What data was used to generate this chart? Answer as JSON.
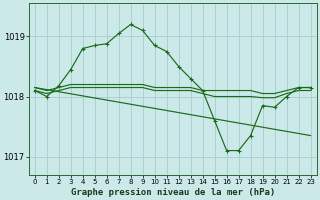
{
  "bg_color": "#cce9e9",
  "grid_color": "#aacccc",
  "line_color": "#1a6b1a",
  "title": "Graphe pression niveau de la mer (hPa)",
  "xlim": [
    -0.5,
    23.5
  ],
  "ylim": [
    1016.7,
    1019.55
  ],
  "yticks": [
    1017,
    1018,
    1019
  ],
  "xticks": [
    0,
    1,
    2,
    3,
    4,
    5,
    6,
    7,
    8,
    9,
    10,
    11,
    12,
    13,
    14,
    15,
    16,
    17,
    18,
    19,
    20,
    21,
    22,
    23
  ],
  "series": [
    {
      "x": [
        0,
        1,
        2,
        3,
        4,
        5,
        6,
        7,
        8,
        9,
        10,
        11,
        12,
        13,
        14,
        15,
        16,
        17,
        18,
        19,
        20,
        21,
        22,
        23
      ],
      "y": [
        1018.15,
        1018.1,
        1018.15,
        1018.2,
        1018.2,
        1018.2,
        1018.2,
        1018.2,
        1018.2,
        1018.2,
        1018.15,
        1018.15,
        1018.15,
        1018.15,
        1018.1,
        1018.1,
        1018.1,
        1018.1,
        1018.1,
        1018.05,
        1018.05,
        1018.1,
        1018.15,
        1018.15
      ],
      "markers": false
    },
    {
      "x": [
        0,
        1,
        2,
        3,
        4,
        5,
        6,
        7,
        8,
        9,
        10,
        11,
        12,
        13,
        14,
        15,
        16,
        17,
        18,
        19,
        20,
        21,
        22,
        23
      ],
      "y": [
        1018.1,
        1018.05,
        1018.1,
        1018.15,
        1018.15,
        1018.15,
        1018.15,
        1018.15,
        1018.15,
        1018.15,
        1018.1,
        1018.1,
        1018.1,
        1018.1,
        1018.05,
        1018.0,
        1018.0,
        1018.0,
        1018.0,
        1017.98,
        1017.98,
        1018.05,
        1018.1,
        1018.1
      ],
      "markers": false
    },
    {
      "x": [
        0,
        23
      ],
      "y": [
        1018.15,
        1017.35
      ],
      "markers": false
    },
    {
      "x": [
        0,
        1,
        2,
        3,
        4,
        5,
        6,
        7,
        8,
        9,
        10,
        11,
        12,
        13,
        14,
        15,
        16,
        17,
        18,
        19,
        20,
        21,
        22,
        23
      ],
      "y": [
        1018.1,
        1018.0,
        1018.18,
        1018.45,
        1018.8,
        1018.85,
        1018.88,
        1019.05,
        1019.2,
        1019.1,
        1018.85,
        1018.75,
        1018.5,
        1018.3,
        1018.1,
        1017.6,
        1017.1,
        1017.1,
        1017.35,
        1017.85,
        1017.82,
        1018.0,
        1018.15,
        1018.15
      ],
      "markers": true
    }
  ]
}
